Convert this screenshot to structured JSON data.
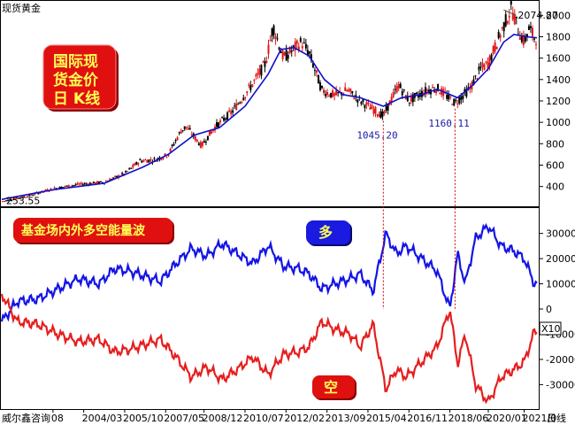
{
  "window": {
    "title": "现货黄金"
  },
  "footer": {
    "left_label": "威尔鑫咨询",
    "right_label": "日线"
  },
  "colors": {
    "candle_up": "#e01818",
    "candle_down": "#000000",
    "moving_average": "#1010c8",
    "bull_line": "#1414e6",
    "bear_line": "#e61e1e",
    "badge_red": "#e01010",
    "badge_blue": "#1a1ae0",
    "annotation_blue": "#1a1aa8",
    "guide_red": "#d00000"
  },
  "badges": {
    "main_title": "国际现货金价日 K线",
    "main_title_lines": [
      "国际现",
      "货金价",
      "日  K线"
    ],
    "panel_title": "基金场内外多空能量波",
    "bull": "多",
    "bear": "空"
  },
  "chart_data": [
    {
      "type": "candlestick",
      "title": "国际现货金价日 K线",
      "yticks": [
        400,
        600,
        800,
        1000,
        1200,
        1400,
        1600,
        1800,
        2000
      ],
      "ylim": [
        240,
        2110
      ],
      "x": [
        2001.0,
        2002.0,
        2003.0,
        2004.0,
        2005.0,
        2005.8,
        2006.4,
        2007.0,
        2007.5,
        2008.0,
        2008.2,
        2008.8,
        2009.3,
        2010.0,
        2010.8,
        2011.3,
        2011.6,
        2012.0,
        2012.7,
        2013.0,
        2013.5,
        2014.0,
        2014.5,
        2015.0,
        2015.9,
        2016.5,
        2016.9,
        2017.6,
        2018.0,
        2018.7,
        2019.3,
        2019.7,
        2020.0,
        2020.6,
        2020.9,
        2021.2,
        2021.4,
        2021.6,
        2021.8
      ],
      "close": [
        260,
        310,
        380,
        420,
        440,
        520,
        640,
        650,
        700,
        920,
        960,
        780,
        950,
        1100,
        1360,
        1550,
        1900,
        1600,
        1750,
        1650,
        1300,
        1250,
        1300,
        1200,
        1060,
        1350,
        1200,
        1300,
        1320,
        1180,
        1320,
        1500,
        1550,
        1900,
        2070,
        1850,
        1750,
        1880,
        1790
      ],
      "moving_average": {
        "x": [
          2001.0,
          2003.0,
          2005.0,
          2006.5,
          2007.5,
          2008.5,
          2009.5,
          2010.5,
          2011.4,
          2011.9,
          2012.4,
          2013.0,
          2013.6,
          2014.3,
          2015.0,
          2015.9,
          2016.6,
          2017.4,
          2018.0,
          2018.8,
          2019.4,
          2020.0,
          2020.6,
          2021.0,
          2021.5,
          2021.9
        ],
        "y": [
          280,
          370,
          430,
          580,
          700,
          880,
          950,
          1150,
          1450,
          1680,
          1700,
          1620,
          1400,
          1260,
          1230,
          1150,
          1230,
          1260,
          1310,
          1230,
          1350,
          1500,
          1750,
          1820,
          1800,
          1790
        ]
      },
      "annotations": [
        {
          "label": "2074.87",
          "x": 2020.6,
          "y": 2074.87
        },
        {
          "label": "1045.20",
          "x": 2015.9,
          "y": 1045.2
        },
        {
          "label": "1160.11",
          "x": 2018.7,
          "y": 1160.11
        },
        {
          "label": "253.55",
          "x": 2001.1,
          "y": 253.55
        }
      ]
    },
    {
      "type": "line",
      "title": "基金场内外多空能量波",
      "xlim": [
        2001.0,
        2021.9
      ],
      "yticks": [
        -30000,
        -20000,
        -10000,
        0,
        10000,
        20000,
        30000
      ],
      "ylim": [
        -39000,
        39000
      ],
      "scale_note": "X10",
      "xticks": [
        "08",
        "2004/03",
        "2005/10",
        "2007/05",
        "2008/12",
        "2010/07",
        "2012/02",
        "2013/09",
        "2015/04",
        "2016/11",
        "2018/06",
        "2020/01",
        "2021/0"
      ],
      "xtick_years": [
        2003.0,
        2004.2,
        2005.8,
        2007.4,
        2008.9,
        2010.5,
        2012.1,
        2013.7,
        2015.3,
        2016.9,
        2018.5,
        2020.0,
        2021.4
      ],
      "series": [
        {
          "name": "多",
          "x": [
            2001.0,
            2001.6,
            2002.4,
            2003.2,
            2004.0,
            2004.8,
            2005.4,
            2006.0,
            2006.6,
            2007.2,
            2007.8,
            2008.4,
            2009.0,
            2009.6,
            2010.2,
            2010.8,
            2011.4,
            2012.0,
            2012.6,
            2013.0,
            2013.5,
            2014.0,
            2014.6,
            2015.0,
            2015.5,
            2016.0,
            2016.4,
            2016.8,
            2017.4,
            2018.0,
            2018.5,
            2018.8,
            2019.1,
            2019.5,
            2020.0,
            2020.5,
            2021.0,
            2021.4,
            2021.8
          ],
          "y": [
            -5000,
            3000,
            4000,
            8000,
            12000,
            10000,
            16000,
            15000,
            13000,
            11000,
            18000,
            24000,
            21000,
            26000,
            22000,
            18000,
            25000,
            17000,
            16000,
            14000,
            8000,
            10000,
            12000,
            14000,
            7000,
            30000,
            22000,
            25000,
            20000,
            15000,
            0,
            22000,
            10000,
            28000,
            33000,
            25000,
            23000,
            20000,
            10000
          ]
        },
        {
          "name": "空",
          "x": [
            2001.0,
            2001.6,
            2002.4,
            2003.2,
            2004.0,
            2004.8,
            2005.4,
            2006.0,
            2006.6,
            2007.2,
            2007.8,
            2008.4,
            2009.0,
            2009.6,
            2010.2,
            2010.8,
            2011.4,
            2012.0,
            2012.6,
            2013.0,
            2013.5,
            2014.0,
            2014.6,
            2015.0,
            2015.5,
            2016.0,
            2016.4,
            2016.8,
            2017.4,
            2018.0,
            2018.5,
            2018.8,
            2019.1,
            2019.5,
            2020.0,
            2020.5,
            2021.0,
            2021.4,
            2021.8
          ],
          "y": [
            6000,
            -5000,
            -6000,
            -10000,
            -13000,
            -12000,
            -17000,
            -16000,
            -14000,
            -12000,
            -19000,
            -27000,
            -23000,
            -28000,
            -24000,
            -19000,
            -26000,
            -18000,
            -17000,
            -15000,
            -5000,
            -8000,
            -10000,
            -15000,
            -6000,
            -32000,
            -24000,
            -27000,
            -21000,
            -15000,
            0,
            -22000,
            -10000,
            -30000,
            -37000,
            -27000,
            -24000,
            -21000,
            -9000
          ]
        }
      ]
    }
  ]
}
